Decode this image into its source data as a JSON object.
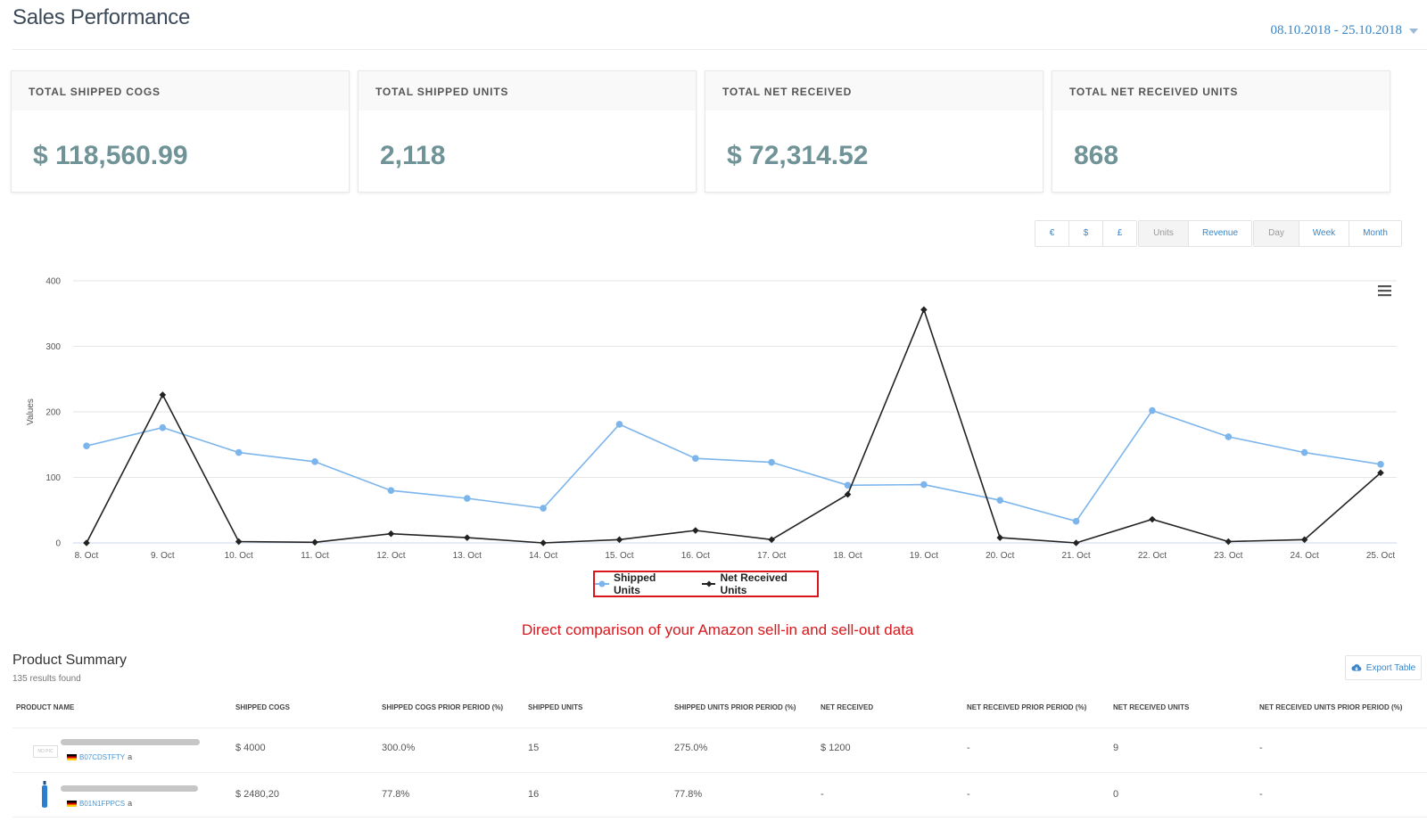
{
  "header": {
    "title": "Sales Performance",
    "date_range": "08.10.2018 - 25.10.2018"
  },
  "kpis": [
    {
      "label": "TOTAL SHIPPED COGS",
      "value": "$ 118,560.99"
    },
    {
      "label": "TOTAL SHIPPED UNITS",
      "value": "2,118"
    },
    {
      "label": "TOTAL NET RECEIVED",
      "value": "$ 72,314.52"
    },
    {
      "label": "TOTAL NET RECEIVED UNITS",
      "value": "868"
    }
  ],
  "controls": {
    "currency": [
      "€",
      "$",
      "£"
    ],
    "metric": [
      "Units",
      "Revenue"
    ],
    "metric_active": "Units",
    "period": [
      "Day",
      "Week",
      "Month"
    ],
    "period_active": "Day"
  },
  "chart_data": {
    "type": "line",
    "x": [
      "8. Oct",
      "9. Oct",
      "10. Oct",
      "11. Oct",
      "12. Oct",
      "13. Oct",
      "14. Oct",
      "15. Oct",
      "16. Oct",
      "17. Oct",
      "18. Oct",
      "19. Oct",
      "20. Oct",
      "21. Oct",
      "22. Oct",
      "23. Oct",
      "24. Oct",
      "25. Oct"
    ],
    "ylabel": "Values",
    "ylim": [
      0,
      400
    ],
    "yticks": [
      0,
      100,
      200,
      300,
      400
    ],
    "grid": true,
    "legend_position": "bottom-center",
    "series": [
      {
        "name": "Shipped Units",
        "color": "#7cb5ec",
        "marker": "circle",
        "values": [
          148,
          176,
          138,
          124,
          80,
          68,
          53,
          181,
          129,
          123,
          88,
          89,
          65,
          33,
          202,
          162,
          138,
          120
        ]
      },
      {
        "name": "Net Received Units",
        "color": "#222222",
        "marker": "diamond",
        "values": [
          0,
          226,
          2,
          1,
          14,
          8,
          0,
          5,
          19,
          5,
          74,
          356,
          8,
          0,
          36,
          2,
          5,
          107
        ]
      }
    ]
  },
  "annotation": "Direct comparison of your Amazon sell-in and sell-out data",
  "summary": {
    "title": "Product Summary",
    "count": "135 results found",
    "export_label": "Export Table",
    "columns": [
      "PRODUCT NAME",
      "SHIPPED COGS",
      "SHIPPED COGS PRIOR PERIOD (%)",
      "SHIPPED UNITS",
      "SHIPPED UNITS PRIOR PERIOD (%)",
      "NET RECEIVED",
      "NET RECEIVED PRIOR PERIOD (%)",
      "NET RECEIVED UNITS",
      "NET RECEIVED UNITS PRIOR PERIOD (%)"
    ],
    "rows": [
      {
        "image": "NO PIC",
        "asin": "B07CDSTFTY",
        "shipped_cogs": "$ 4000",
        "shipped_cogs_prior": "300.0%",
        "shipped_units": "15",
        "shipped_units_prior": "275.0%",
        "net_received": "$ 1200",
        "net_received_prior": "-",
        "net_received_units": "9",
        "net_received_units_prior": "-"
      },
      {
        "image": "",
        "asin": "B01N1FPPCS",
        "shipped_cogs": "$ 2480,20",
        "shipped_cogs_prior": "77.8%",
        "shipped_units": "16",
        "shipped_units_prior": "77.8%",
        "net_received": "-",
        "net_received_prior": "-",
        "net_received_units": "0",
        "net_received_units_prior": "-"
      }
    ]
  },
  "icons": {
    "menu": "hamburger-icon",
    "export": "cloud-download-icon",
    "amazon": "amazon-logo-icon",
    "flag": "germany-flag-icon"
  }
}
